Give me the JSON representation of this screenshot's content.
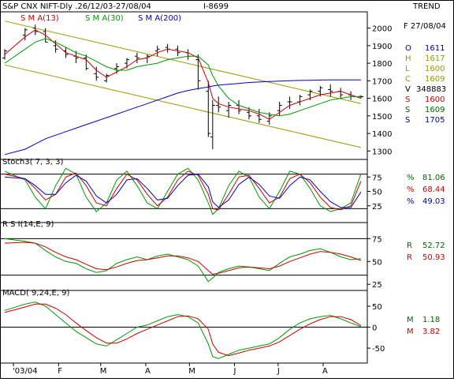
{
  "header": {
    "title": "S&P CNX NIFT-Dly .26/12/03-27/08/04",
    "id": "I-8699",
    "trend_label": "TREND"
  },
  "readouts": {
    "date": "F 27/08/04",
    "open_label": "O",
    "open": "1611",
    "high_label": "H",
    "high": "1617",
    "low_label": "L",
    "low": "1600",
    "close_label": "C",
    "close": "1609",
    "volume_label": "V",
    "volume": "348883",
    "sma13_label": "S",
    "sma13": "1600",
    "sma30_label": "S",
    "sma30": "1609",
    "sma200_label": "S",
    "sma200": "1705"
  },
  "colors": {
    "price": "#000000",
    "sma13": "#cc0000",
    "sma30": "#009900",
    "sma200": "#0000cc",
    "trend": "#999900",
    "text_green": "#006600",
    "text_red": "#cc0000",
    "text_blue": "#000099"
  },
  "chart_data": [
    {
      "type": "line",
      "panel": "price",
      "legend": [
        "S M A(13)",
        "S M A(30)",
        "S M A(200)"
      ],
      "ylim": [
        1270,
        2070
      ],
      "yticks": [
        1300,
        1400,
        1500,
        1600,
        1700,
        1800,
        1900,
        2000
      ],
      "x": [
        "2003-12-26",
        "2004-01-09",
        "2004-01-16",
        "2004-01-23",
        "2004-01-30",
        "2004-02-06",
        "2004-02-13",
        "2004-02-20",
        "2004-02-27",
        "2004-03-05",
        "2004-03-12",
        "2004-03-19",
        "2004-03-26",
        "2004-04-02",
        "2004-04-09",
        "2004-04-16",
        "2004-04-23",
        "2004-04-30",
        "2004-05-07",
        "2004-05-14",
        "2004-05-17",
        "2004-05-21",
        "2004-05-28",
        "2004-06-04",
        "2004-06-11",
        "2004-06-18",
        "2004-06-25",
        "2004-07-02",
        "2004-07-09",
        "2004-07-16",
        "2004-07-23",
        "2004-07-30",
        "2004-08-06",
        "2004-08-13",
        "2004-08-20",
        "2004-08-27"
      ],
      "series": [
        {
          "name": "S M A(13)",
          "key": "sma13",
          "values": [
            1850,
            1950,
            1990,
            1960,
            1910,
            1860,
            1840,
            1820,
            1760,
            1720,
            1750,
            1780,
            1820,
            1830,
            1860,
            1880,
            1870,
            1860,
            1830,
            1690,
            1600,
            1570,
            1550,
            1540,
            1530,
            1510,
            1480,
            1520,
            1560,
            1580,
            1600,
            1620,
            1630,
            1640,
            1620,
            1600
          ]
        },
        {
          "name": "S M A(30)",
          "key": "sma30",
          "values": [
            1800,
            1880,
            1920,
            1940,
            1920,
            1890,
            1860,
            1840,
            1810,
            1780,
            1760,
            1760,
            1780,
            1790,
            1800,
            1820,
            1830,
            1840,
            1840,
            1790,
            1730,
            1670,
            1600,
            1560,
            1540,
            1520,
            1510,
            1500,
            1510,
            1530,
            1550,
            1570,
            1590,
            1600,
            1610,
            1609
          ]
        },
        {
          "name": "S M A(200)",
          "key": "sma200",
          "values": [
            1280,
            1310,
            1340,
            1370,
            1390,
            1410,
            1430,
            1450,
            1470,
            1490,
            1510,
            1530,
            1550,
            1570,
            1590,
            1610,
            1630,
            1645,
            1655,
            1665,
            1670,
            1675,
            1680,
            1685,
            1690,
            1693,
            1696,
            1698,
            1700,
            1702,
            1703,
            1704,
            1705,
            1705,
            1705,
            1705
          ]
        }
      ],
      "ohlc": {
        "open": [
          1830,
          1960,
          2000,
          1980,
          1900,
          1870,
          1840,
          1830,
          1740,
          1700,
          1770,
          1800,
          1840,
          1830,
          1870,
          1890,
          1880,
          1860,
          1820,
          1640,
          1380,
          1560,
          1530,
          1560,
          1520,
          1500,
          1470,
          1530,
          1580,
          1580,
          1620,
          1640,
          1650,
          1640,
          1620,
          1611
        ],
        "high": [
          1880,
          2000,
          2020,
          2000,
          1930,
          1890,
          1870,
          1850,
          1780,
          1740,
          1800,
          1830,
          1860,
          1850,
          1900,
          1910,
          1900,
          1880,
          1850,
          1700,
          1590,
          1610,
          1580,
          1590,
          1550,
          1540,
          1520,
          1580,
          1610,
          1620,
          1650,
          1670,
          1680,
          1660,
          1640,
          1617
        ],
        "low": [
          1820,
          1930,
          1960,
          1920,
          1860,
          1830,
          1800,
          1760,
          1700,
          1690,
          1740,
          1770,
          1800,
          1800,
          1840,
          1860,
          1840,
          1820,
          1650,
          1380,
          1310,
          1520,
          1490,
          1510,
          1480,
          1460,
          1450,
          1500,
          1540,
          1560,
          1590,
          1610,
          1610,
          1600,
          1590,
          1600
        ],
        "close": [
          1870,
          1990,
          1980,
          1920,
          1880,
          1850,
          1830,
          1770,
          1720,
          1730,
          1780,
          1820,
          1830,
          1840,
          1880,
          1880,
          1860,
          1840,
          1700,
          1400,
          1560,
          1550,
          1560,
          1530,
          1500,
          1480,
          1500,
          1560,
          1580,
          1610,
          1640,
          1660,
          1640,
          1620,
          1610,
          1609
        ]
      },
      "trendlines": [
        {
          "x": [
            "2003-12-26",
            "2004-08-27"
          ],
          "y": [
            2040,
            1570
          ]
        },
        {
          "x": [
            "2003-12-26",
            "2004-08-27"
          ],
          "y": [
            1790,
            1320
          ]
        }
      ]
    },
    {
      "type": "line",
      "panel": "stochastic",
      "legend": [
        "Stoch3( 7, 3, 3)"
      ],
      "ylim": [
        0,
        100
      ],
      "yticks": [
        25,
        50,
        75
      ],
      "hlines": [
        20,
        80
      ],
      "readouts": [
        "81.06",
        "68.44",
        "49.03"
      ],
      "series": [
        {
          "name": "%K",
          "key": "k",
          "values": [
            85,
            70,
            40,
            20,
            60,
            90,
            80,
            40,
            15,
            30,
            70,
            85,
            60,
            30,
            20,
            50,
            80,
            90,
            70,
            30,
            10,
            20,
            60,
            85,
            75,
            40,
            20,
            50,
            85,
            80,
            55,
            25,
            15,
            20,
            30,
            81
          ]
        },
        {
          "name": "%D",
          "key": "d",
          "values": [
            80,
            72,
            55,
            35,
            45,
            75,
            82,
            60,
            30,
            25,
            55,
            80,
            70,
            45,
            25,
            40,
            70,
            85,
            78,
            45,
            20,
            18,
            45,
            75,
            78,
            55,
            30,
            40,
            72,
            80,
            65,
            40,
            22,
            18,
            25,
            68
          ]
        },
        {
          "name": "Slow",
          "key": "s",
          "values": [
            75,
            72,
            60,
            45,
            45,
            65,
            78,
            68,
            42,
            30,
            45,
            70,
            72,
            55,
            35,
            38,
            60,
            78,
            80,
            58,
            32,
            22,
            35,
            62,
            75,
            62,
            42,
            38,
            60,
            75,
            70,
            50,
            32,
            22,
            22,
            49
          ]
        }
      ]
    },
    {
      "type": "line",
      "panel": "rsi",
      "legend": [
        "R S I(14,E, 9)"
      ],
      "ylim": [
        20,
        90
      ],
      "yticks": [
        25,
        50,
        75
      ],
      "hlines": [
        35,
        75
      ],
      "readouts": [
        "52.72",
        "50.93"
      ],
      "series": [
        {
          "name": "RSI",
          "key": "rsi",
          "values": [
            75,
            72,
            70,
            62,
            55,
            50,
            48,
            42,
            38,
            40,
            48,
            52,
            55,
            52,
            56,
            58,
            55,
            52,
            45,
            28,
            32,
            38,
            42,
            45,
            44,
            42,
            40,
            48,
            55,
            58,
            62,
            64,
            60,
            55,
            52,
            53
          ]
        },
        {
          "name": "Signal",
          "key": "sig",
          "values": [
            70,
            71,
            70,
            66,
            60,
            55,
            52,
            47,
            42,
            41,
            44,
            48,
            51,
            52,
            54,
            56,
            56,
            54,
            50,
            40,
            36,
            37,
            40,
            43,
            44,
            43,
            42,
            45,
            50,
            54,
            58,
            61,
            60,
            58,
            55,
            51
          ]
        }
      ]
    },
    {
      "type": "line",
      "panel": "macd",
      "legend": [
        "MACD( 9,24,E, 9)"
      ],
      "ylim": [
        -80,
        80
      ],
      "yticks": [
        -50,
        0,
        50
      ],
      "hlines": [
        0
      ],
      "readouts": [
        "1.18",
        "3.82"
      ],
      "series": [
        {
          "name": "MACD",
          "key": "macd",
          "values": [
            40,
            55,
            60,
            50,
            30,
            10,
            -10,
            -25,
            -40,
            -45,
            -30,
            -15,
            0,
            5,
            15,
            25,
            30,
            25,
            10,
            -40,
            -70,
            -75,
            -65,
            -55,
            -50,
            -45,
            -40,
            -25,
            -5,
            10,
            20,
            25,
            28,
            20,
            10,
            1.18
          ]
        },
        {
          "name": "Signal",
          "key": "sig",
          "values": [
            35,
            48,
            55,
            55,
            45,
            30,
            10,
            -8,
            -25,
            -38,
            -38,
            -28,
            -15,
            -5,
            5,
            15,
            25,
            27,
            20,
            -5,
            -40,
            -60,
            -68,
            -62,
            -55,
            -50,
            -45,
            -35,
            -20,
            -5,
            8,
            18,
            25,
            25,
            18,
            3.82
          ]
        }
      ]
    }
  ],
  "x_axis": {
    "labels": [
      {
        "text": "'03/04",
        "x": "2004-01-01"
      },
      {
        "text": "F",
        "x": "2004-02-01"
      },
      {
        "text": "M",
        "x": "2004-03-01"
      },
      {
        "text": "A",
        "x": "2004-04-01"
      },
      {
        "text": "M",
        "x": "2004-05-01"
      },
      {
        "text": "J",
        "x": "2004-06-01"
      },
      {
        "text": "J",
        "x": "2004-07-01"
      },
      {
        "text": "A",
        "x": "2004-08-01"
      }
    ]
  }
}
